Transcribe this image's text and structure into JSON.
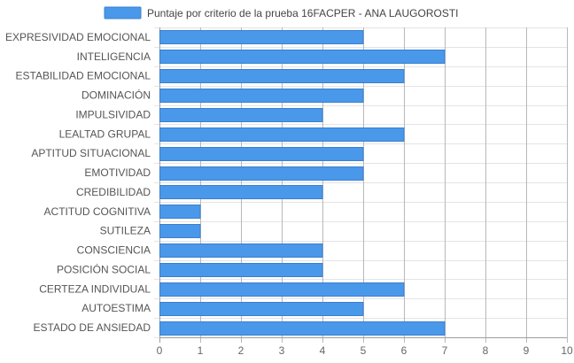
{
  "chart_data": {
    "type": "bar",
    "orientation": "horizontal",
    "categories": [
      "EXPRESIVIDAD EMOCIONAL",
      "INTELIGENCIA",
      "ESTABILIDAD EMOCIONAL",
      "DOMINACIÓN",
      "IMPULSIVIDAD",
      "LEALTAD GRUPAL",
      "APTITUD SITUACIONAL",
      "EMOTIVIDAD",
      "CREDIBILIDAD",
      "ACTITUD COGNITIVA",
      "SUTILEZA",
      "CONSCIENCIA",
      "POSICIÓN SOCIAL",
      "CERTEZA INDIVIDUAL",
      "AUTOESTIMA",
      "ESTADO DE ANSIEDAD"
    ],
    "series": [
      {
        "name": "Puntaje por criterio de la prueba 16FACPER - ANA LAUGOROSTI",
        "color": "#4a98ea",
        "border_color": "#3a7fd0",
        "values": [
          5,
          7,
          6,
          5,
          4,
          6,
          5,
          5,
          4,
          1,
          1,
          4,
          4,
          6,
          5,
          7
        ]
      }
    ],
    "xlim": [
      0,
      10
    ],
    "x_ticks": [
      "0",
      "1",
      "2",
      "3",
      "4",
      "5",
      "6",
      "7",
      "8",
      "9",
      "10"
    ],
    "grid": true,
    "legend_position": "top"
  }
}
